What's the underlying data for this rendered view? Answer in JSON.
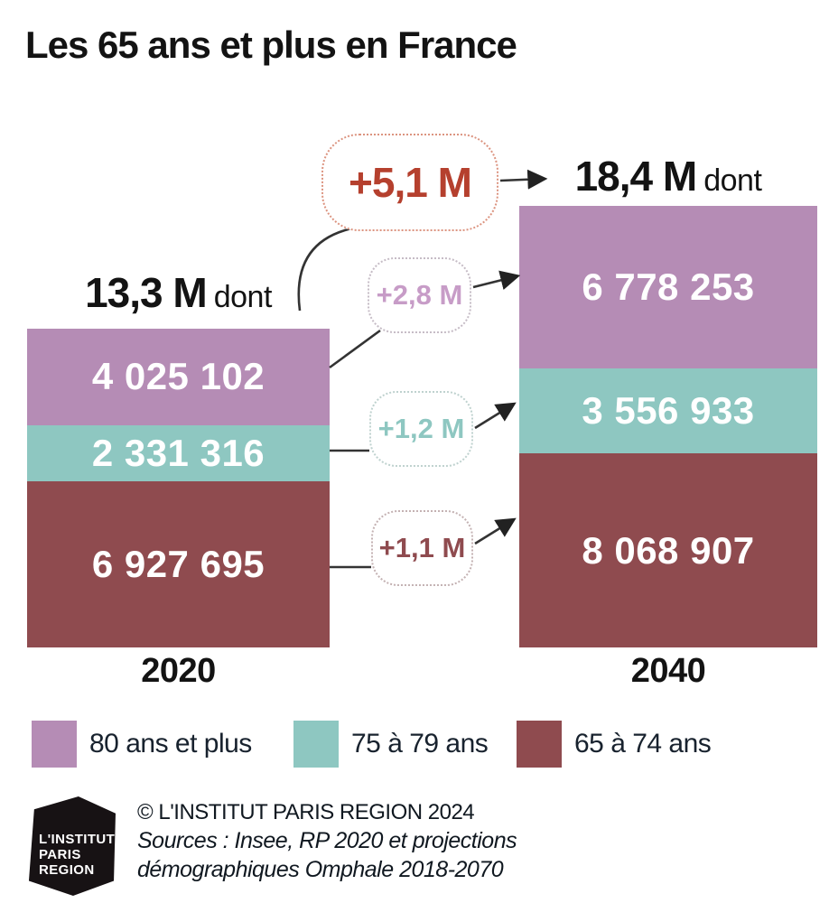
{
  "title": "Les 65 ans et plus en France",
  "chart_data": {
    "type": "bar",
    "stacked": true,
    "grid": false,
    "legend_position": "bottom",
    "categories": [
      "2020",
      "2040"
    ],
    "series": [
      {
        "name": "80 ans et plus",
        "color": "#b58cb5",
        "values": [
          4025102,
          6778253
        ],
        "labels": [
          "4 025 102",
          "6 778 253"
        ]
      },
      {
        "name": "75 à 79 ans",
        "color": "#8ec7c1",
        "values": [
          2331316,
          3556933
        ],
        "labels": [
          "2 331 316",
          "3 556 933"
        ]
      },
      {
        "name": "65 à 74 ans",
        "color": "#8f4b4f",
        "values": [
          6927695,
          8068907
        ],
        "labels": [
          "6 927 695",
          "8 068 907"
        ]
      }
    ],
    "totals": [
      {
        "value_label": "13,3 M",
        "suffix": "dont"
      },
      {
        "value_label": "18,4 M",
        "suffix": "dont"
      }
    ],
    "deltas": [
      {
        "label": "+5,1 M",
        "applies_to": "total",
        "color": "#b5402e",
        "border": "#dc9480"
      },
      {
        "label": "+2,8 M",
        "applies_to": "80 ans et plus",
        "color": "#c79cc7",
        "border": "#c6bcc6"
      },
      {
        "label": "+1,2 M",
        "applies_to": "75 à 79 ans",
        "color": "#8ec7c1",
        "border": "#bfd2cf"
      },
      {
        "label": "+1,1 M",
        "applies_to": "65 à 74 ans",
        "color": "#8f4b4f",
        "border": "#c4b2b3"
      }
    ]
  },
  "legend": [
    {
      "label": "80 ans et plus",
      "color": "#b58cb5"
    },
    {
      "label": "75 à 79 ans",
      "color": "#8ec7c1"
    },
    {
      "label": "65 à 74 ans",
      "color": "#8f4b4f"
    }
  ],
  "footer": {
    "logo_line1": "L'INSTITUT",
    "logo_line2": "PARIS",
    "logo_line3": "REGION",
    "copyright": "© L'INSTITUT PARIS REGION 2024",
    "sources_line1": "Sources : Insee, RP 2020 et projections",
    "sources_line2": "démographiques Omphale 2018-2070"
  }
}
